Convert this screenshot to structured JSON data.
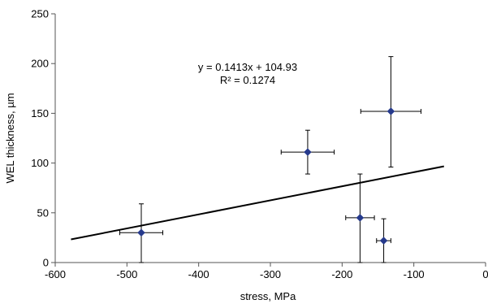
{
  "chart_data": {
    "type": "scatter",
    "xlabel": "stress, MPa",
    "ylabel": "WEL thickness, µm",
    "xlim": [
      -600,
      0
    ],
    "ylim": [
      0,
      250
    ],
    "xticks": [
      -600,
      -500,
      -400,
      -300,
      -200,
      -100,
      0
    ],
    "yticks": [
      0,
      50,
      100,
      150,
      200,
      250
    ],
    "xtick_labels": [
      "-600",
      "-500",
      "-400",
      "-300",
      "-200",
      "-100",
      "0"
    ],
    "ytick_labels": [
      "0",
      "50",
      "100",
      "150",
      "200",
      "250"
    ],
    "grid": false,
    "legend": "none",
    "points": [
      {
        "x": -480,
        "y": 30,
        "xerr": 30,
        "yerr_low": 30,
        "yerr_high": 29
      },
      {
        "x": -248,
        "y": 111,
        "xerr": 37,
        "yerr_low": 22,
        "yerr_high": 22
      },
      {
        "x": -132,
        "y": 152,
        "xerr": 42,
        "yerr_low": 56,
        "yerr_high": 55
      },
      {
        "x": -175,
        "y": 45,
        "xerr": 20,
        "yerr_low": 45,
        "yerr_high": 44
      },
      {
        "x": -142,
        "y": 22,
        "xerr": 10,
        "yerr_low": 22,
        "yerr_high": 22
      }
    ],
    "trendline": {
      "slope": 0.1413,
      "intercept": 104.93,
      "x_range": [
        -578,
        -58
      ],
      "equation_label": "y = 0.1413x + 104.93",
      "r2_label": "R² = 0.1274"
    },
    "colors": {
      "marker": "#263a8c",
      "line": "#000000",
      "axis": "#555555"
    }
  }
}
